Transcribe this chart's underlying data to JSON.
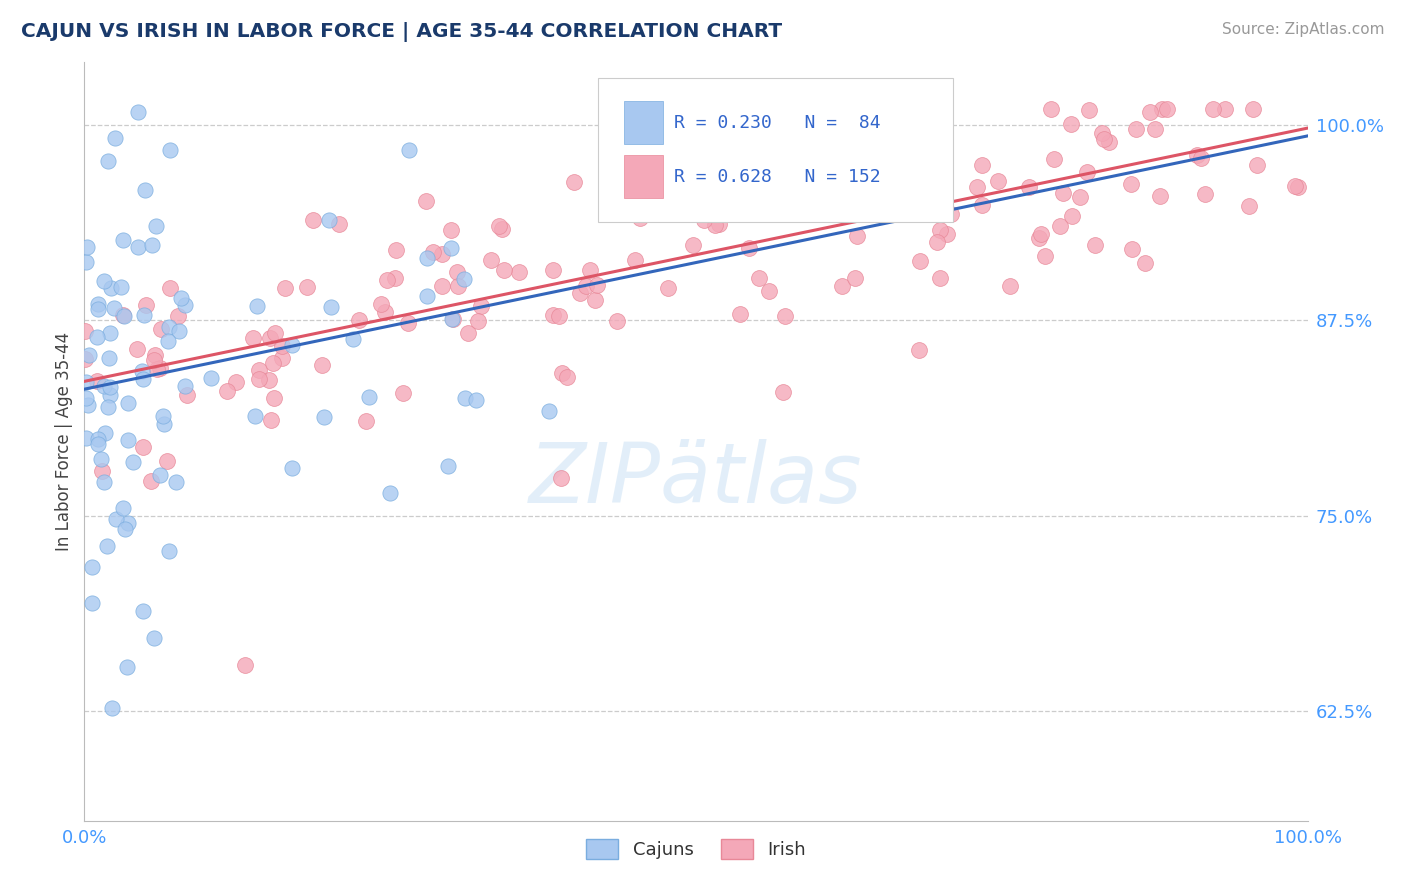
{
  "title": "CAJUN VS IRISH IN LABOR FORCE | AGE 35-44 CORRELATION CHART",
  "source": "Source: ZipAtlas.com",
  "ylabel": "In Labor Force | Age 35-44",
  "xlim": [
    0.0,
    1.0
  ],
  "ylim": [
    0.555,
    1.04
  ],
  "yticks": [
    0.625,
    0.75,
    0.875,
    1.0
  ],
  "ytick_labels": [
    "62.5%",
    "75.0%",
    "87.5%",
    "100.0%"
  ],
  "xtick_labels": [
    "0.0%",
    "100.0%"
  ],
  "cajun_color": "#a8c8f0",
  "irish_color": "#f4a8b8",
  "cajun_edge_color": "#7aaddf",
  "irish_edge_color": "#e88898",
  "cajun_line_color": "#3366bb",
  "irish_line_color": "#dd5566",
  "background_color": "#ffffff",
  "grid_color": "#cccccc",
  "cajun_r": 0.23,
  "cajun_n": 84,
  "irish_r": 0.628,
  "irish_n": 152,
  "title_color": "#1a3a6b",
  "source_color": "#999999",
  "tick_label_color": "#4499ff",
  "legend_color": "#3366cc",
  "watermark_color": "#d0e4f5",
  "watermark_alpha": 0.6,
  "cajun_line_intercept": 0.831,
  "cajun_line_slope": 0.162,
  "irish_line_intercept": 0.836,
  "irish_line_slope": 0.162
}
